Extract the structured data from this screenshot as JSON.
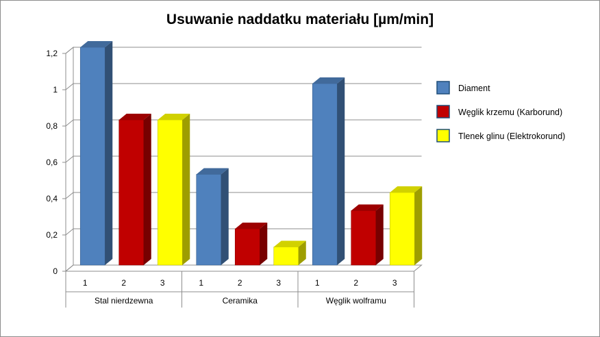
{
  "chart_data": {
    "type": "bar",
    "title": "Usuwanie naddatku materiału [µm/min]",
    "xlabel": "",
    "ylabel": "",
    "ylim": [
      0,
      1.2
    ],
    "yticks": [
      "0",
      "0,2",
      "0,4",
      "0,6",
      "0,8",
      "1",
      "1,2"
    ],
    "grid": true,
    "legend_position": "right",
    "groups": [
      {
        "label": "Stal nierdzewna",
        "subcategories": [
          "1",
          "2",
          "3"
        ]
      },
      {
        "label": "Ceramika",
        "subcategories": [
          "1",
          "2",
          "3"
        ]
      },
      {
        "label": "Węglik wolframu",
        "subcategories": [
          "1",
          "2",
          "3"
        ]
      }
    ],
    "series": [
      {
        "name": "Diament",
        "color": "#4f81bd",
        "values": [
          1.2,
          0.5,
          1.0
        ]
      },
      {
        "name": "Węglik krzemu (Karborund)",
        "color": "#c00000",
        "values": [
          0.8,
          0.2,
          0.3
        ]
      },
      {
        "name": "Tlenek glinu (Elektrokorund)",
        "color": "#ffff00",
        "values": [
          0.8,
          0.1,
          0.4
        ]
      }
    ]
  }
}
